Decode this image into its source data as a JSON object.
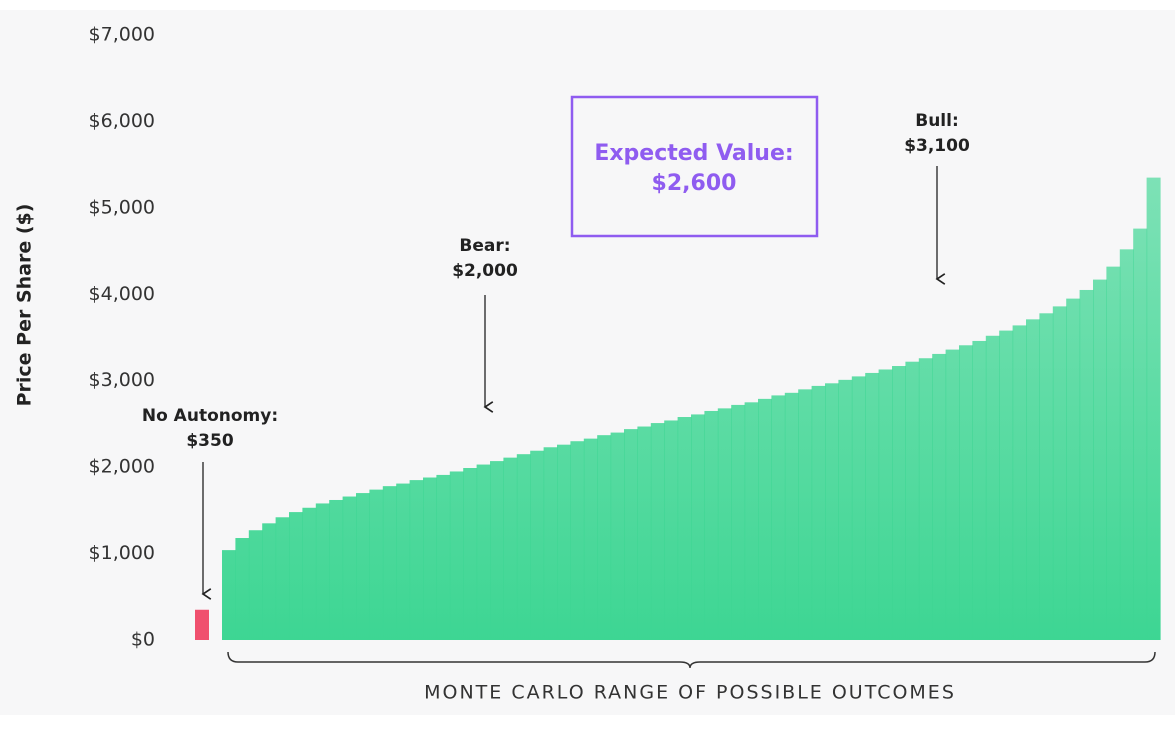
{
  "chart_data": {
    "type": "bar",
    "y_label": "Price Per Share ($)",
    "x_label": "MONTE CARLO RANGE OF POSSIBLE OUTCOMES",
    "ylim": [
      0,
      7000
    ],
    "yticks": [
      {
        "value": 0,
        "label": "$0"
      },
      {
        "value": 1000,
        "label": "$1,000"
      },
      {
        "value": 2000,
        "label": "$2,000"
      },
      {
        "value": 3000,
        "label": "$3,000"
      },
      {
        "value": 4000,
        "label": "$4,000"
      },
      {
        "value": 5000,
        "label": "$5,000"
      },
      {
        "value": 6000,
        "label": "$6,000"
      },
      {
        "value": 7000,
        "label": "$7,000"
      }
    ],
    "color": "#3dd693",
    "values": [
      1040,
      1180,
      1270,
      1350,
      1420,
      1480,
      1530,
      1580,
      1620,
      1660,
      1700,
      1740,
      1780,
      1810,
      1850,
      1880,
      1910,
      1950,
      1990,
      2030,
      2070,
      2110,
      2150,
      2190,
      2230,
      2260,
      2300,
      2330,
      2370,
      2400,
      2440,
      2470,
      2510,
      2540,
      2580,
      2610,
      2650,
      2680,
      2720,
      2750,
      2790,
      2830,
      2860,
      2900,
      2940,
      2970,
      3010,
      3050,
      3090,
      3130,
      3170,
      3220,
      3260,
      3310,
      3360,
      3410,
      3460,
      3520,
      3580,
      3640,
      3710,
      3780,
      3860,
      3950,
      4050,
      4170,
      4320,
      4520,
      4760,
      5350
    ],
    "no_autonomy": {
      "title": "No Autonomy:",
      "label": "$350",
      "value": 350,
      "color": "#f0506e"
    },
    "annotations": [
      {
        "title": "Bear:",
        "label": "$2,000",
        "value": 2000
      },
      {
        "title": "Bull:",
        "label": "$3,100",
        "value": 3100
      }
    ],
    "expected_value": {
      "title": "Expected Value:",
      "label": "$2,600",
      "value": 2600,
      "color": "#8f5cf0"
    }
  }
}
